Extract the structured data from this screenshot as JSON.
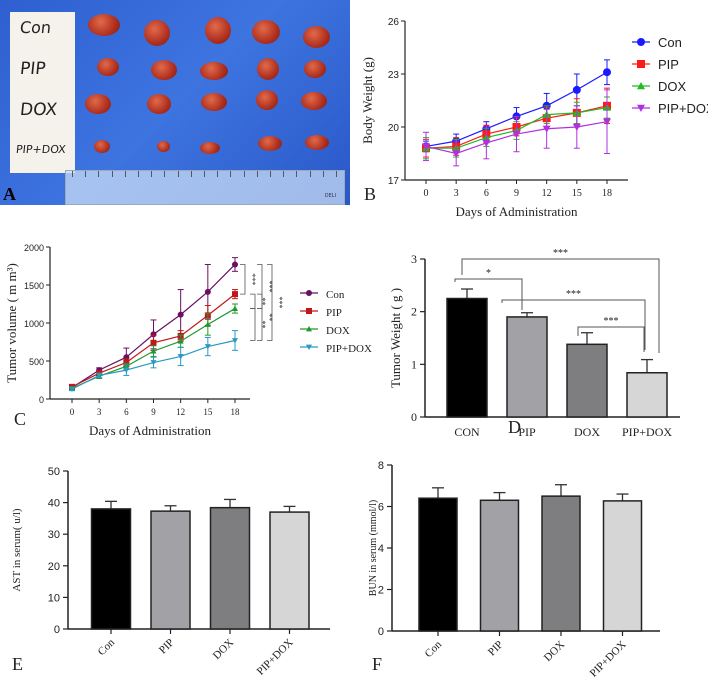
{
  "panel_letters": [
    "A",
    "B",
    "C",
    "D",
    "E",
    "F"
  ],
  "photo": {
    "row_labels": [
      "Con",
      "PIP",
      "DOX",
      "PIP+DOX"
    ],
    "ruler_brand": "DELI"
  },
  "chart_data": [
    {
      "panel": "B",
      "type": "line",
      "title": "",
      "xlabel": "Days of Administration",
      "ylabel": "Body Weight (g)",
      "x": [
        0,
        3,
        6,
        9,
        12,
        15,
        18
      ],
      "xlim": [
        0,
        18
      ],
      "ylim": [
        17,
        26
      ],
      "yticks": [
        17,
        20,
        23,
        26
      ],
      "legend_position": "right",
      "series": [
        {
          "name": "Con",
          "color": "#1a1aff",
          "marker": "circle",
          "values": [
            18.9,
            19.2,
            19.9,
            20.6,
            21.2,
            22.1,
            23.1
          ],
          "errors": [
            0.3,
            0.4,
            0.4,
            0.5,
            0.7,
            0.9,
            0.7
          ]
        },
        {
          "name": "PIP",
          "color": "#ff1a1a",
          "marker": "square",
          "values": [
            18.8,
            18.9,
            19.6,
            20.0,
            20.5,
            20.8,
            21.2
          ],
          "errors": [
            0.5,
            0.5,
            0.5,
            0.5,
            0.6,
            0.8,
            1.0
          ]
        },
        {
          "name": "DOX",
          "color": "#22bb22",
          "marker": "triangle",
          "values": [
            18.8,
            18.8,
            19.4,
            19.8,
            20.7,
            20.8,
            21.1
          ],
          "errors": [
            0.6,
            0.5,
            0.5,
            0.5,
            0.5,
            0.6,
            0.6
          ]
        },
        {
          "name": "PIP+DOX",
          "color": "#b030e0",
          "marker": "triangle-down",
          "values": [
            18.9,
            18.5,
            19.1,
            19.6,
            19.9,
            20.0,
            20.3
          ],
          "errors": [
            0.8,
            0.7,
            0.9,
            1.0,
            1.1,
            1.2,
            1.8
          ]
        }
      ]
    },
    {
      "panel": "C",
      "type": "line",
      "title": "",
      "xlabel": "Days of Administration",
      "ylabel": "Tumor volume ( m m³)",
      "x": [
        0,
        3,
        6,
        9,
        12,
        15,
        18
      ],
      "xlim": [
        0,
        18
      ],
      "ylim": [
        0,
        2000
      ],
      "yticks": [
        0,
        500,
        1000,
        1500,
        2000
      ],
      "legend_position": "right",
      "series": [
        {
          "name": "Con",
          "color": "#6a1060",
          "marker": "circle",
          "values": [
            150,
            380,
            550,
            850,
            1110,
            1410,
            1770
          ],
          "errors": [
            20,
            30,
            120,
            190,
            330,
            360,
            90
          ]
        },
        {
          "name": "PIP",
          "color": "#c01818",
          "marker": "square",
          "values": [
            160,
            340,
            480,
            740,
            830,
            1100,
            1380
          ],
          "errors": [
            20,
            30,
            50,
            100,
            70,
            130,
            60
          ]
        },
        {
          "name": "DOX",
          "color": "#1f9a2a",
          "marker": "triangle",
          "values": [
            140,
            300,
            430,
            630,
            760,
            980,
            1190
          ],
          "errors": [
            20,
            30,
            40,
            70,
            80,
            140,
            60
          ]
        },
        {
          "name": "PIP+DOX",
          "color": "#2a9ac0",
          "marker": "triangle-down",
          "values": [
            130,
            310,
            380,
            480,
            560,
            690,
            770
          ],
          "errors": [
            20,
            30,
            70,
            70,
            120,
            120,
            130
          ]
        }
      ],
      "significance": [
        {
          "from": "Con",
          "to": "PIP",
          "label": "***"
        },
        {
          "from": "PIP",
          "to": "DOX",
          "label": "**"
        },
        {
          "from": "DOX",
          "to": "PIP+DOX",
          "label": "**"
        },
        {
          "from": "Con",
          "to": "DOX",
          "label": "***"
        },
        {
          "from": "PIP",
          "to": "PIP+DOX",
          "label": "**"
        },
        {
          "from": "Con",
          "to": "PIP+DOX",
          "label": "***"
        }
      ]
    },
    {
      "panel": "D",
      "type": "bar",
      "title": "",
      "xlabel": "",
      "ylabel": "Tumor Weight ( g )",
      "categories": [
        "CON",
        "PIP",
        "DOX",
        "PIP+DOX"
      ],
      "values": [
        2.25,
        1.9,
        1.38,
        0.84
      ],
      "errors": [
        0.18,
        0.08,
        0.22,
        0.25
      ],
      "colors": [
        "#000000",
        "#a2a2a6",
        "#7e7e80",
        "#d6d6d6"
      ],
      "ylim": [
        0,
        3
      ],
      "yticks": [
        0,
        1,
        2,
        3
      ],
      "significance": [
        {
          "from": "CON",
          "to": "PIP",
          "label": "*"
        },
        {
          "from": "PIP",
          "to": "PIP+DOX",
          "label": "***"
        },
        {
          "from": "DOX",
          "to": "PIP+DOX",
          "label": "***"
        },
        {
          "from": "CON",
          "to": "PIP+DOX",
          "label": "***"
        }
      ]
    },
    {
      "panel": "E",
      "type": "bar",
      "title": "",
      "xlabel": "",
      "ylabel": "AST in serum(  u/l)",
      "categories": [
        "Con",
        "PIP",
        "DOX",
        "PIP+DOX"
      ],
      "values": [
        38.0,
        37.3,
        38.4,
        37.0
      ],
      "errors": [
        2.4,
        1.7,
        2.6,
        1.8
      ],
      "colors": [
        "#000000",
        "#a2a2a6",
        "#7e7e80",
        "#d6d6d6"
      ],
      "ylim": [
        0,
        50
      ],
      "yticks": [
        0,
        10,
        20,
        30,
        40,
        50
      ]
    },
    {
      "panel": "F",
      "type": "bar",
      "title": "",
      "xlabel": "",
      "ylabel": "BUN in serum (mmol/l)",
      "categories": [
        "Con",
        "PIP",
        "DOX",
        "PIP+DOX"
      ],
      "values": [
        6.4,
        6.3,
        6.5,
        6.27
      ],
      "errors": [
        0.5,
        0.37,
        0.55,
        0.33
      ],
      "colors": [
        "#000000",
        "#a2a2a6",
        "#7e7e80",
        "#d6d6d6"
      ],
      "ylim": [
        0,
        8
      ],
      "yticks": [
        0,
        2,
        4,
        6,
        8
      ]
    }
  ]
}
